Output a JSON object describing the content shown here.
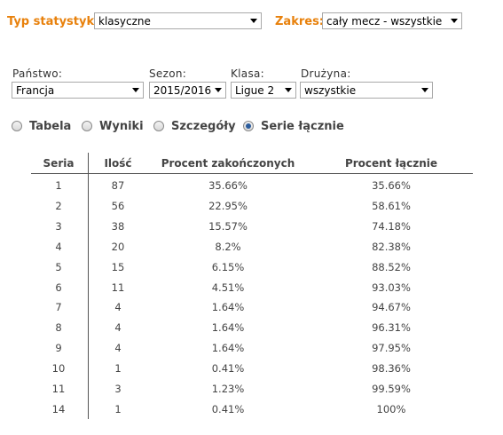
{
  "top": {
    "stat_type_label": "Typ statystyk:",
    "stat_type_value": "klasyczne",
    "range_label": "Zakres:",
    "range_value": "cały mecz - wszystkie"
  },
  "filters": {
    "country_label": "Państwo:",
    "country_value": "Francja",
    "season_label": "Sezon:",
    "season_value": "2015/2016",
    "class_label": "Klasa:",
    "class_value": "Ligue 2",
    "team_label": "Drużyna:",
    "team_value": "wszystkie"
  },
  "views": [
    {
      "label": "Tabela",
      "checked": false
    },
    {
      "label": "Wyniki",
      "checked": false
    },
    {
      "label": "Szczegóły",
      "checked": false
    },
    {
      "label": "Serie łącznie",
      "checked": true
    }
  ],
  "table": {
    "headers": [
      "Seria",
      "Ilość",
      "Procent zakończonych",
      "Procent łącznie"
    ],
    "rows": [
      [
        "1",
        "87",
        "35.66%",
        "35.66%"
      ],
      [
        "2",
        "56",
        "22.95%",
        "58.61%"
      ],
      [
        "3",
        "38",
        "15.57%",
        "74.18%"
      ],
      [
        "4",
        "20",
        "8.2%",
        "82.38%"
      ],
      [
        "5",
        "15",
        "6.15%",
        "88.52%"
      ],
      [
        "6",
        "11",
        "4.51%",
        "93.03%"
      ],
      [
        "7",
        "4",
        "1.64%",
        "94.67%"
      ],
      [
        "8",
        "4",
        "1.64%",
        "96.31%"
      ],
      [
        "9",
        "4",
        "1.64%",
        "97.95%"
      ],
      [
        "10",
        "1",
        "0.41%",
        "98.36%"
      ],
      [
        "11",
        "3",
        "1.23%",
        "99.59%"
      ],
      [
        "14",
        "1",
        "0.41%",
        "100%"
      ]
    ]
  }
}
